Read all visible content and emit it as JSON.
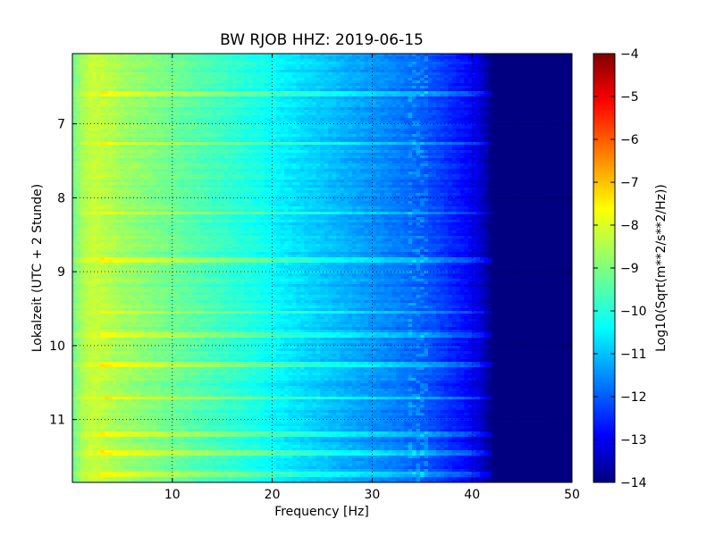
{
  "chart_data": {
    "type": "heatmap",
    "title": "BW RJOB HHZ: 2019-06-15",
    "xlabel": "Frequency [Hz]",
    "ylabel": "Lokalzeit (UTC + 2 Stunde)",
    "colorbar_label": "Log10(Sqrt(m**2/s**2/Hz))",
    "xlim": [
      0,
      50
    ],
    "ylim": [
      11.85,
      6.05
    ],
    "y_inverted": true,
    "x_ticks": [
      10,
      20,
      30,
      40,
      50
    ],
    "x_tick_labels": [
      "10",
      "20",
      "30",
      "40",
      "50"
    ],
    "y_ticks": [
      7,
      8,
      9,
      10,
      11
    ],
    "y_tick_labels": [
      "7",
      "8",
      "9",
      "10",
      "11"
    ],
    "colorbar_range": [
      -14,
      -4
    ],
    "colorbar_ticks": [
      -4,
      -5,
      -6,
      -7,
      -8,
      -9,
      -10,
      -11,
      -12,
      -13,
      -14
    ],
    "colorbar_tick_labels": [
      "−4",
      "−5",
      "−6",
      "−7",
      "−8",
      "−9",
      "−10",
      "−11",
      "−12",
      "−13",
      "−14"
    ],
    "colormap": "jet",
    "grid": true,
    "spectrum_profile": {
      "frequency_hz": [
        0,
        1,
        2,
        3,
        5,
        7,
        10,
        13,
        16,
        19,
        21,
        24,
        27,
        30,
        33,
        36,
        38,
        40,
        41,
        42,
        50
      ],
      "log10_psd": [
        -9.2,
        -8.6,
        -8.3,
        -8.4,
        -8.7,
        -8.9,
        -9.2,
        -9.5,
        -9.8,
        -10.1,
        -10.4,
        -10.7,
        -11.0,
        -11.3,
        -11.6,
        -12.0,
        -12.4,
        -12.8,
        -13.3,
        -14.0,
        -14.0
      ]
    },
    "bright_rows_local_hour": [
      6.6,
      7.27,
      8.2,
      8.85,
      9.55,
      9.85,
      10.25,
      10.7,
      11.2,
      11.45,
      11.75
    ]
  }
}
